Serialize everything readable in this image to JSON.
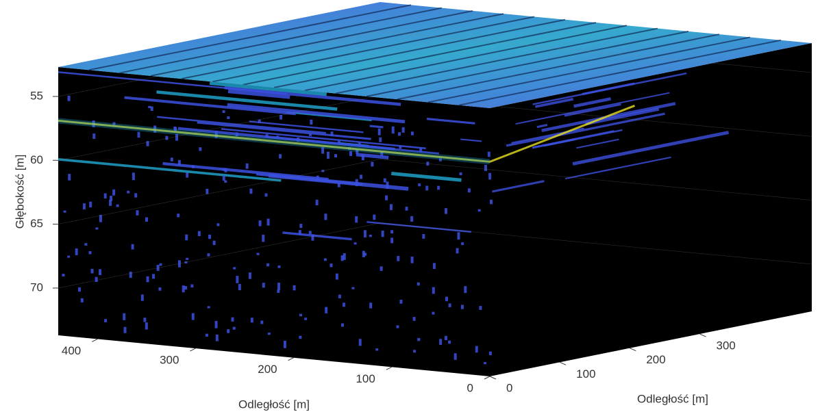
{
  "chart_data": {
    "type": "volume3d",
    "xlabel": "Odległość [m]",
    "ylabel": "Odległość [m]",
    "zlabel": "Głębokość [m]",
    "xlim": [
      0,
      440
    ],
    "xticks": [
      0,
      100,
      200,
      300,
      400
    ],
    "ylim": [
      0,
      460
    ],
    "yticks": [
      0,
      100,
      200,
      300
    ],
    "zlim": [
      52.7,
      73.7
    ],
    "zticks": [
      55,
      60,
      65,
      70
    ],
    "z_reversed": true,
    "grid": true,
    "colormap": [
      "#000000",
      "#3c50e0",
      "#1fa0c8",
      "#e8e020"
    ]
  }
}
